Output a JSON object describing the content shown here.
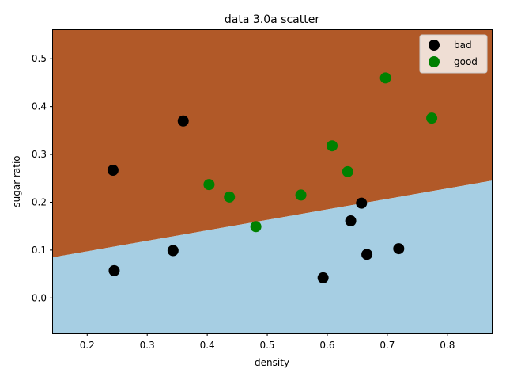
{
  "chart_data": {
    "type": "scatter",
    "title": "data 3.0a scatter",
    "xlabel": "density",
    "ylabel": "sugar ratio",
    "xlim": [
      0.143,
      0.874
    ],
    "ylim": [
      -0.074,
      0.56
    ],
    "xticks": [
      0.2,
      0.3,
      0.4,
      0.5,
      0.6,
      0.7,
      0.8
    ],
    "xtick_labels": [
      "0.2",
      "0.3",
      "0.4",
      "0.5",
      "0.6",
      "0.7",
      "0.8"
    ],
    "yticks": [
      0.0,
      0.1,
      0.2,
      0.3,
      0.4,
      0.5
    ],
    "ytick_labels": [
      "0.0",
      "0.1",
      "0.2",
      "0.3",
      "0.4",
      "0.5"
    ],
    "grid": false,
    "legend_position": "top-right",
    "decision_boundary": {
      "x": [
        0.143,
        0.874
      ],
      "y": [
        0.085,
        0.245
      ],
      "above_color": "#b15928",
      "below_color": "#a6cee3"
    },
    "series": [
      {
        "name": "bad",
        "color": "#000000",
        "points": [
          [
            0.243,
            0.267
          ],
          [
            0.245,
            0.057
          ],
          [
            0.343,
            0.099
          ],
          [
            0.36,
            0.37
          ],
          [
            0.593,
            0.042
          ],
          [
            0.639,
            0.161
          ],
          [
            0.657,
            0.198
          ],
          [
            0.666,
            0.091
          ],
          [
            0.719,
            0.103
          ]
        ]
      },
      {
        "name": "good",
        "color": "#008000",
        "points": [
          [
            0.403,
            0.237
          ],
          [
            0.437,
            0.211
          ],
          [
            0.481,
            0.149
          ],
          [
            0.556,
            0.215
          ],
          [
            0.608,
            0.318
          ],
          [
            0.634,
            0.264
          ],
          [
            0.697,
            0.46
          ],
          [
            0.774,
            0.376
          ]
        ]
      }
    ]
  }
}
